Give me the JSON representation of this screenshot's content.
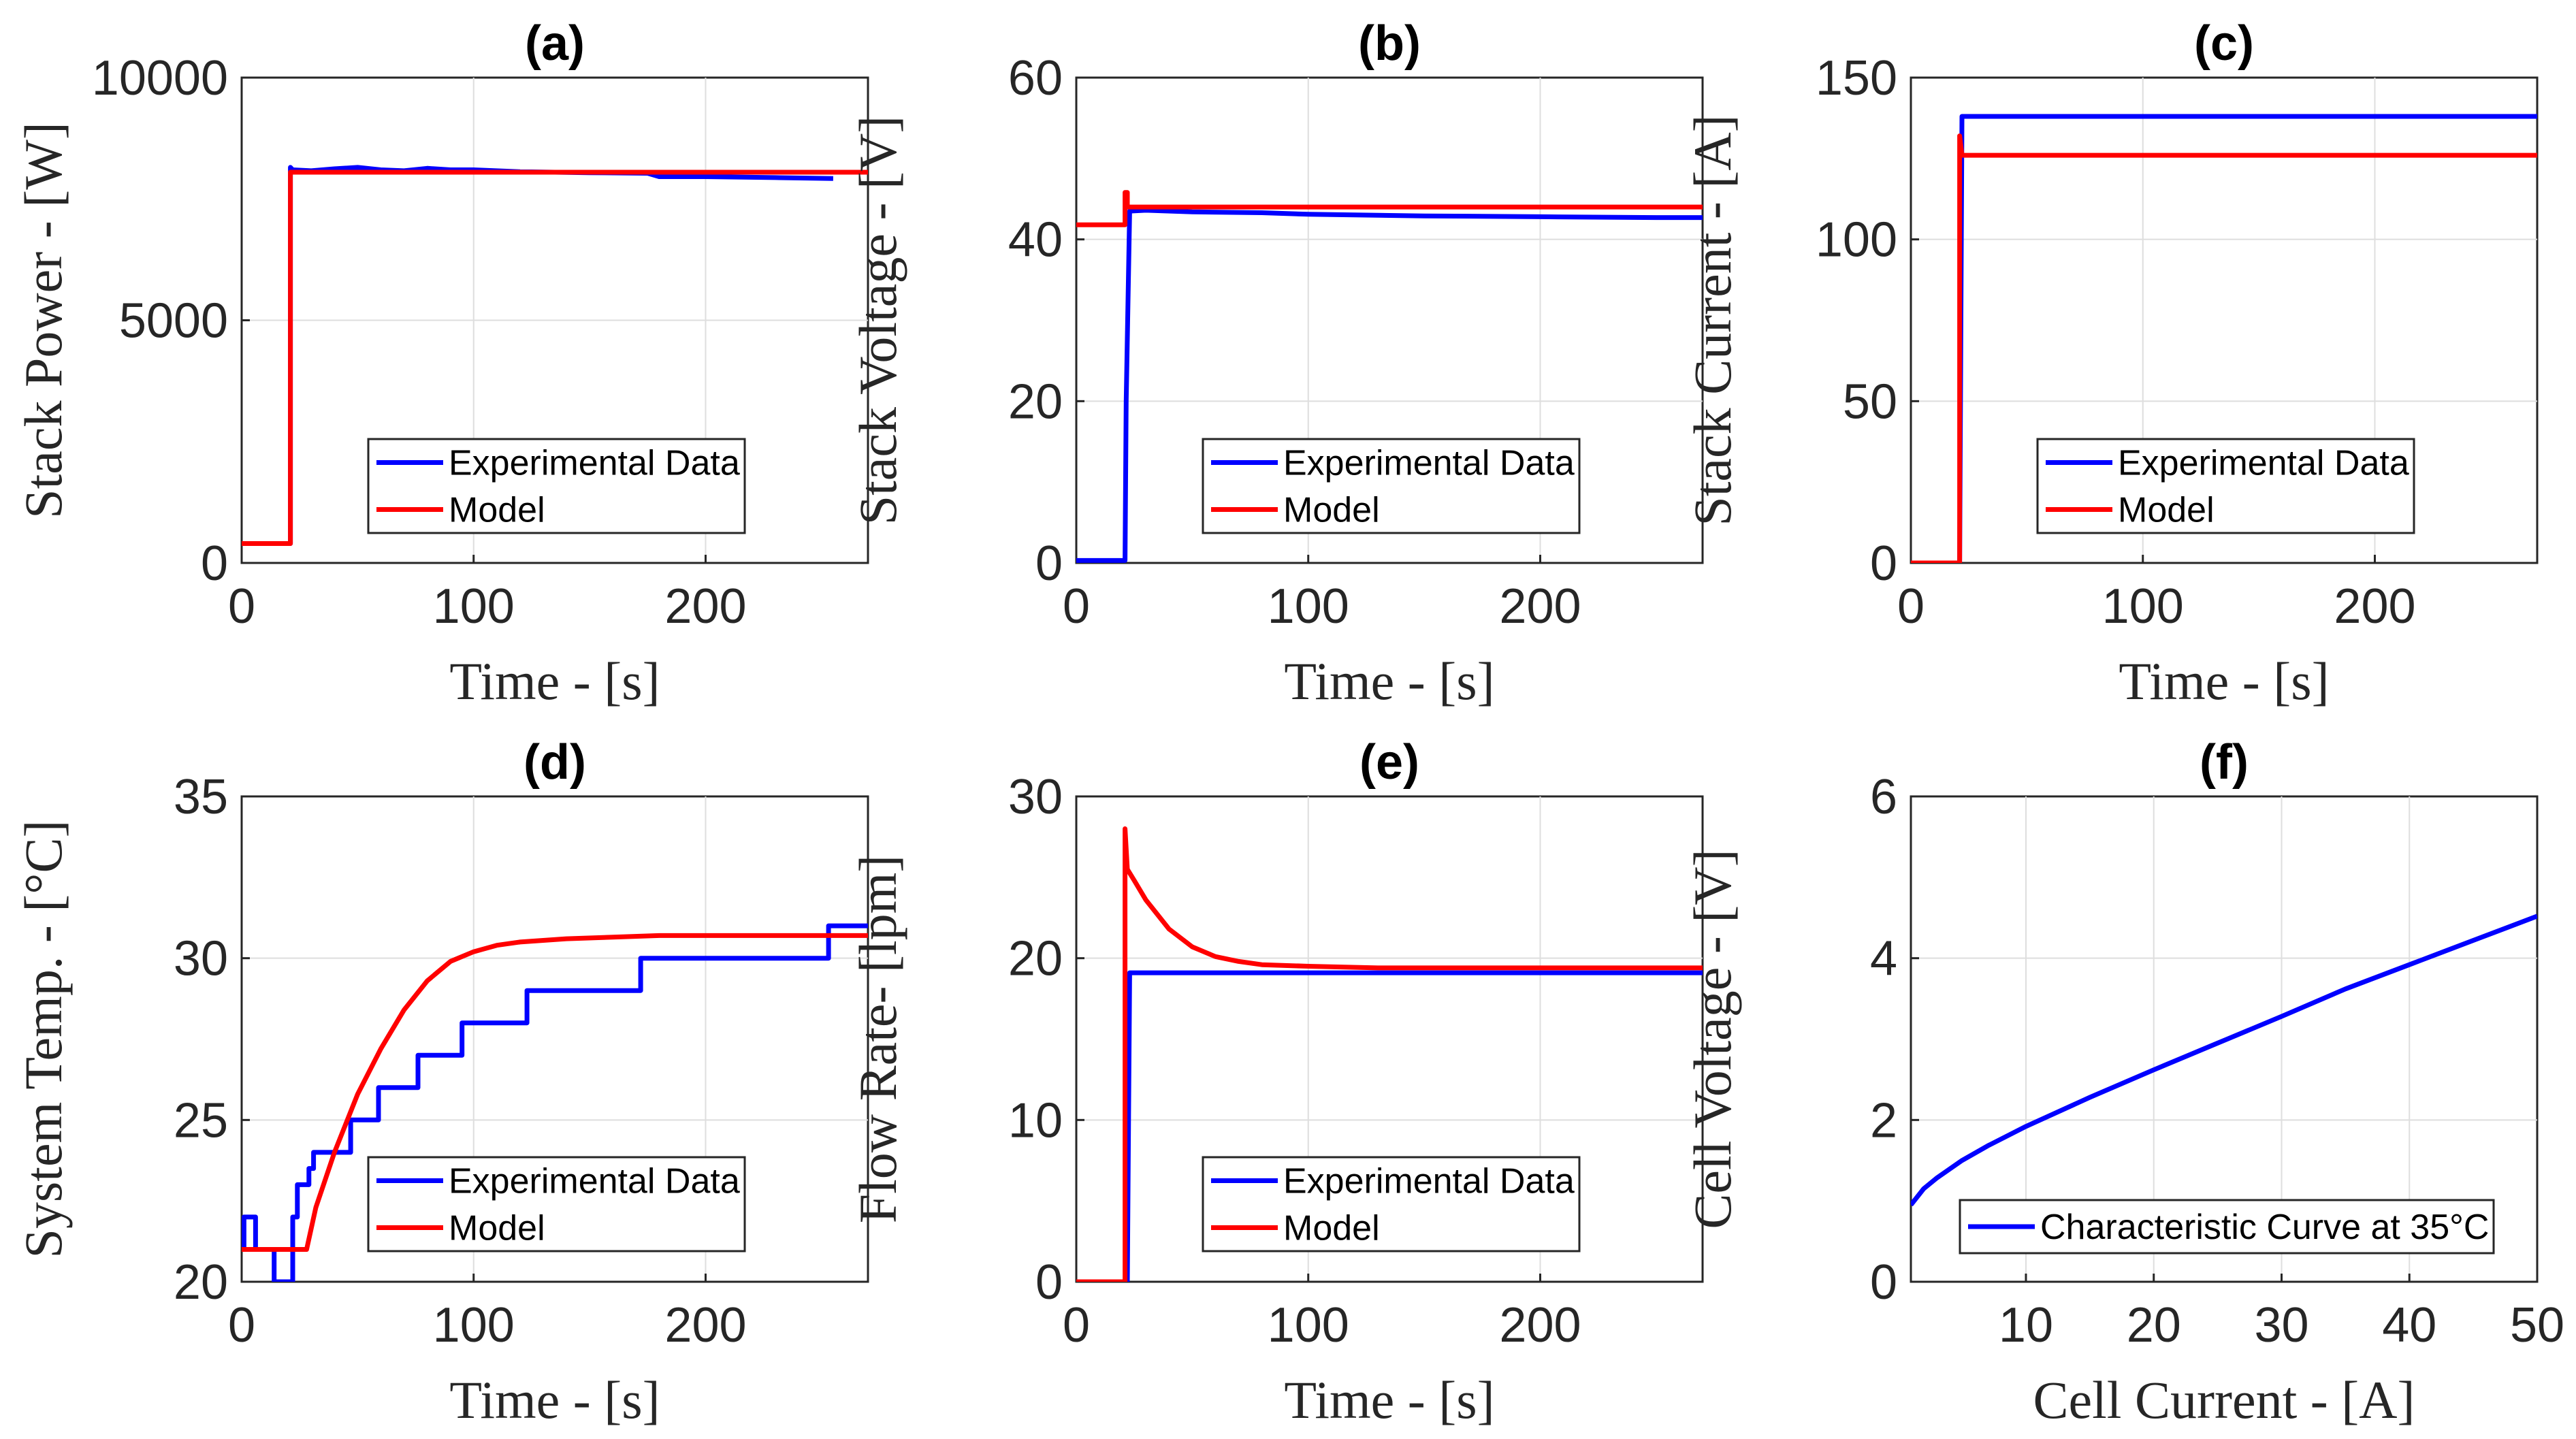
{
  "chart_data": [
    {
      "id": "a",
      "type": "line",
      "title": "(a)",
      "xlabel": "Time - [s]",
      "ylabel": "Stack Power - [W]",
      "xlim": [
        0,
        270
      ],
      "ylim": [
        0,
        10000
      ],
      "xticks": [
        0,
        100,
        200
      ],
      "yticks": [
        0,
        5000,
        10000
      ],
      "legend": "center",
      "grid": true,
      "series": [
        {
          "name": "Experimental Data",
          "color": "#0000ff",
          "x": [
            0,
            21,
            21,
            22,
            30,
            40,
            50,
            60,
            70,
            80,
            90,
            100,
            120,
            150,
            175,
            180,
            200,
            230,
            255
          ],
          "y": [
            400,
            400,
            8150,
            8100,
            8080,
            8120,
            8150,
            8100,
            8080,
            8130,
            8100,
            8100,
            8060,
            8040,
            8030,
            7960,
            7960,
            7940,
            7920
          ]
        },
        {
          "name": "Model",
          "color": "#ff0000",
          "x": [
            0,
            21,
            21,
            270
          ],
          "y": [
            400,
            400,
            8050,
            8050
          ]
        }
      ]
    },
    {
      "id": "b",
      "type": "line",
      "title": "(b)",
      "xlabel": "Time - [s]",
      "ylabel": "Stack Voltage - [V]",
      "xlim": [
        0,
        270
      ],
      "ylim": [
        0,
        60
      ],
      "xticks": [
        0,
        100,
        200
      ],
      "yticks": [
        0,
        20,
        40,
        60
      ],
      "legend": "center",
      "grid": true,
      "series": [
        {
          "name": "Experimental Data",
          "color": "#0000ff",
          "x": [
            0,
            21,
            21.5,
            23,
            30,
            50,
            80,
            100,
            150,
            200,
            250,
            270
          ],
          "y": [
            0.3,
            0.3,
            20,
            43.5,
            43.6,
            43.4,
            43.3,
            43.1,
            42.9,
            42.8,
            42.7,
            42.7
          ]
        },
        {
          "name": "Model",
          "color": "#ff0000",
          "x": [
            0,
            21,
            21,
            22,
            22,
            270
          ],
          "y": [
            41.8,
            41.8,
            45.8,
            45.8,
            44.0,
            44.0
          ]
        }
      ]
    },
    {
      "id": "c",
      "type": "line",
      "title": "(c)",
      "xlabel": "Time - [s]",
      "ylabel": "Stack Current - [A]",
      "xlim": [
        0,
        270
      ],
      "ylim": [
        0,
        150
      ],
      "xticks": [
        0,
        100,
        200
      ],
      "yticks": [
        0,
        50,
        100,
        150
      ],
      "legend": "center",
      "grid": true,
      "series": [
        {
          "name": "Experimental Data",
          "color": "#0000ff",
          "x": [
            0,
            21,
            22,
            270
          ],
          "y": [
            0,
            0,
            138,
            138
          ]
        },
        {
          "name": "Model",
          "color": "#ff0000",
          "x": [
            0,
            21,
            21,
            22,
            270
          ],
          "y": [
            0,
            0,
            132,
            126,
            126
          ]
        }
      ]
    },
    {
      "id": "d",
      "type": "line",
      "title": "(d)",
      "xlabel": "Time - [s]",
      "ylabel": "System Temp. - [°C]",
      "xlim": [
        0,
        270
      ],
      "ylim": [
        20,
        35
      ],
      "xticks": [
        0,
        100,
        200
      ],
      "yticks": [
        20,
        25,
        30,
        35
      ],
      "legend": "center",
      "grid": true,
      "series": [
        {
          "name": "Experimental Data",
          "color": "#0000ff",
          "x": [
            0,
            1,
            1,
            6,
            6,
            14,
            14,
            22,
            22,
            24,
            24,
            29,
            29,
            31,
            31,
            37,
            37,
            47,
            47,
            59,
            59,
            62,
            62,
            76,
            76,
            80,
            80,
            95,
            95,
            97,
            97,
            123,
            123,
            126,
            126,
            172,
            172,
            253,
            253,
            270
          ],
          "y": [
            21,
            21,
            22,
            22,
            21,
            21,
            20,
            20,
            22,
            22,
            23,
            23,
            23.5,
            23.5,
            24,
            24,
            24,
            24,
            25,
            25,
            26,
            26,
            26,
            26,
            27,
            27,
            27,
            27,
            28,
            28,
            28,
            28,
            29,
            29,
            29,
            29,
            30,
            30,
            31,
            31
          ]
        },
        {
          "name": "Model",
          "color": "#ff0000",
          "x": [
            0,
            28,
            32,
            40,
            50,
            60,
            70,
            80,
            90,
            100,
            110,
            120,
            140,
            160,
            180,
            200,
            230,
            270
          ],
          "y": [
            21,
            21,
            22.3,
            24.0,
            25.8,
            27.2,
            28.4,
            29.3,
            29.9,
            30.2,
            30.4,
            30.5,
            30.6,
            30.65,
            30.7,
            30.7,
            30.7,
            30.7
          ]
        }
      ]
    },
    {
      "id": "e",
      "type": "line",
      "title": "(e)",
      "xlabel": "Time - [s]",
      "ylabel": "Flow Rate- [lpm]",
      "xlim": [
        0,
        270
      ],
      "ylim": [
        0,
        30
      ],
      "xticks": [
        0,
        100,
        200
      ],
      "yticks": [
        0,
        10,
        20,
        30
      ],
      "legend": "center",
      "grid": true,
      "series": [
        {
          "name": "Experimental Data",
          "color": "#0000ff",
          "x": [
            0,
            22,
            23,
            270
          ],
          "y": [
            0,
            0,
            19.1,
            19.1
          ]
        },
        {
          "name": "Model",
          "color": "#ff0000",
          "x": [
            0,
            21,
            21,
            22,
            25,
            30,
            40,
            50,
            60,
            70,
            80,
            100,
            130,
            170,
            270
          ],
          "y": [
            0,
            0,
            28.0,
            25.5,
            24.8,
            23.6,
            21.8,
            20.7,
            20.1,
            19.8,
            19.6,
            19.5,
            19.4,
            19.4,
            19.4
          ]
        }
      ]
    },
    {
      "id": "f",
      "type": "line",
      "title": "(f)",
      "xlabel": "Cell Current - [A]",
      "ylabel": "Cell Voltage - [V]",
      "xlim": [
        1,
        50
      ],
      "ylim": [
        0,
        6
      ],
      "xticks": [
        10,
        20,
        30,
        40,
        50
      ],
      "yticks": [
        0,
        2,
        4,
        6
      ],
      "legend": "bottom",
      "grid": true,
      "series": [
        {
          "name": "Characteristic Curve at 35°C",
          "color": "#0000ff",
          "x": [
            1,
            2,
            3,
            5,
            7,
            10,
            15,
            20,
            25,
            30,
            35,
            40,
            45,
            50
          ],
          "y": [
            0.95,
            1.15,
            1.28,
            1.5,
            1.68,
            1.92,
            2.28,
            2.62,
            2.95,
            3.28,
            3.62,
            3.92,
            4.22,
            4.52
          ]
        }
      ]
    }
  ]
}
